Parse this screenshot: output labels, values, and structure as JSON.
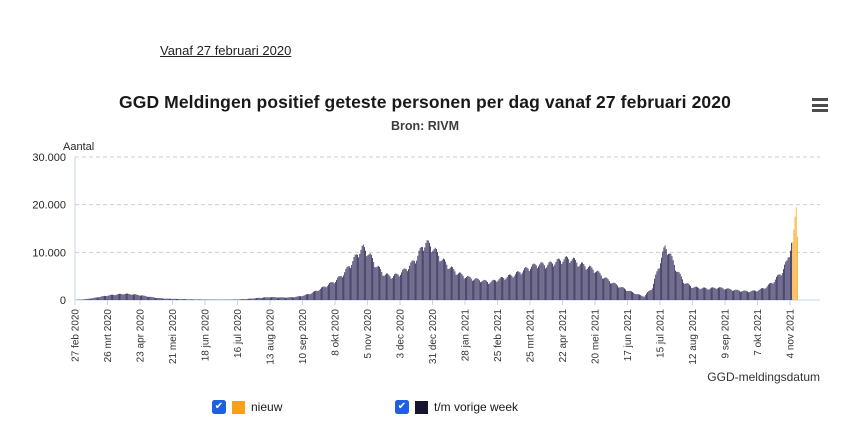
{
  "header": {
    "range_link_label": "Vanaf 27 februari 2020"
  },
  "menu": {
    "icon": "hamburger-menu-icon"
  },
  "chart_data": {
    "type": "bar",
    "title": "GGD Meldingen positief geteste personen per dag vanaf 27 februari 2020",
    "subtitle": "Bron: RIVM",
    "ylabel": "Aantal",
    "xlabel": "GGD-meldingsdatum",
    "ylim": [
      0,
      30000
    ],
    "ytick_values": [
      0,
      10000,
      20000,
      30000
    ],
    "ytick_labels": [
      "0",
      "10.000",
      "20.000",
      "30.000"
    ],
    "grid": "horizontal dashed",
    "legend_position": "bottom",
    "x_unit": "day",
    "xtick_interval_days": 28,
    "xtick_labels": [
      "27 feb 2020",
      "26 mrt 2020",
      "23 apr 2020",
      "21 mei 2020",
      "18 jun 2020",
      "16 jul 2020",
      "13 aug 2020",
      "10 sep 2020",
      "8 okt 2020",
      "5 nov 2020",
      "3 dec 2020",
      "31 dec 2020",
      "28 jan 2021",
      "25 feb 2021",
      "25 mrt 2021",
      "22 apr 2021",
      "20 mei 2021",
      "17 jun 2021",
      "15 jul 2021",
      "12 aug 2021",
      "9 sep 2021",
      "7 okt 2021",
      "4 nov 2021"
    ],
    "series": [
      {
        "name": "t/m vorige week",
        "color": "#272152",
        "keyframes_day_value": [
          [
            0,
            30
          ],
          [
            7,
            120
          ],
          [
            14,
            350
          ],
          [
            21,
            650
          ],
          [
            28,
            950
          ],
          [
            35,
            1150
          ],
          [
            42,
            1300
          ],
          [
            49,
            1200
          ],
          [
            56,
            1000
          ],
          [
            63,
            700
          ],
          [
            70,
            450
          ],
          [
            77,
            300
          ],
          [
            84,
            240
          ],
          [
            91,
            190
          ],
          [
            98,
            150
          ],
          [
            105,
            120
          ],
          [
            112,
            95
          ],
          [
            119,
            80
          ],
          [
            126,
            70
          ],
          [
            133,
            85
          ],
          [
            140,
            120
          ],
          [
            147,
            200
          ],
          [
            154,
            350
          ],
          [
            161,
            500
          ],
          [
            168,
            600
          ],
          [
            175,
            550
          ],
          [
            182,
            520
          ],
          [
            189,
            620
          ],
          [
            196,
            900
          ],
          [
            203,
            1400
          ],
          [
            210,
            2200
          ],
          [
            217,
            3100
          ],
          [
            224,
            4000
          ],
          [
            231,
            5500
          ],
          [
            238,
            7800
          ],
          [
            245,
            10300
          ],
          [
            248,
            10900
          ],
          [
            252,
            10000
          ],
          [
            259,
            7300
          ],
          [
            266,
            5400
          ],
          [
            273,
            4900
          ],
          [
            280,
            5600
          ],
          [
            287,
            6900
          ],
          [
            294,
            8800
          ],
          [
            299,
            11200
          ],
          [
            302,
            12000
          ],
          [
            308,
            11000
          ],
          [
            315,
            8700
          ],
          [
            322,
            7000
          ],
          [
            329,
            5700
          ],
          [
            336,
            4900
          ],
          [
            343,
            4400
          ],
          [
            350,
            4100
          ],
          [
            357,
            3700
          ],
          [
            364,
            4300
          ],
          [
            371,
            4800
          ],
          [
            378,
            5300
          ],
          [
            385,
            6100
          ],
          [
            392,
            6900
          ],
          [
            399,
            7500
          ],
          [
            406,
            7300
          ],
          [
            413,
            7900
          ],
          [
            420,
            8500
          ],
          [
            427,
            8700
          ],
          [
            434,
            7600
          ],
          [
            441,
            7000
          ],
          [
            448,
            6200
          ],
          [
            455,
            4800
          ],
          [
            462,
            3700
          ],
          [
            469,
            2800
          ],
          [
            476,
            2000
          ],
          [
            483,
            1300
          ],
          [
            490,
            750
          ],
          [
            497,
            2600
          ],
          [
            504,
            8200
          ],
          [
            508,
            11000
          ],
          [
            511,
            10300
          ],
          [
            518,
            6300
          ],
          [
            525,
            3600
          ],
          [
            532,
            2700
          ],
          [
            539,
            2500
          ],
          [
            546,
            2400
          ],
          [
            553,
            2600
          ],
          [
            560,
            2400
          ],
          [
            567,
            2100
          ],
          [
            574,
            1900
          ],
          [
            581,
            1800
          ],
          [
            588,
            2000
          ],
          [
            595,
            2700
          ],
          [
            602,
            4000
          ],
          [
            609,
            6000
          ],
          [
            613,
            8000
          ],
          [
            617,
            12000
          ]
        ],
        "weekday_pattern": [
          0.94,
          1.0,
          1.06,
          1.07,
          1.04,
          0.99,
          0.9
        ]
      },
      {
        "name": "nieuw",
        "color": "#f8a51e",
        "recent_values": [
          12100,
          14800,
          17500,
          19400,
          13300
        ]
      }
    ]
  },
  "legend": {
    "checkbox_color": "#2060df",
    "check_glyph": "✔",
    "items": [
      {
        "label": "nieuw",
        "checked": true,
        "swatch_color": "#f9a01b"
      },
      {
        "label": "t/m vorige week",
        "checked": true,
        "swatch_color": "#15152f"
      }
    ]
  }
}
